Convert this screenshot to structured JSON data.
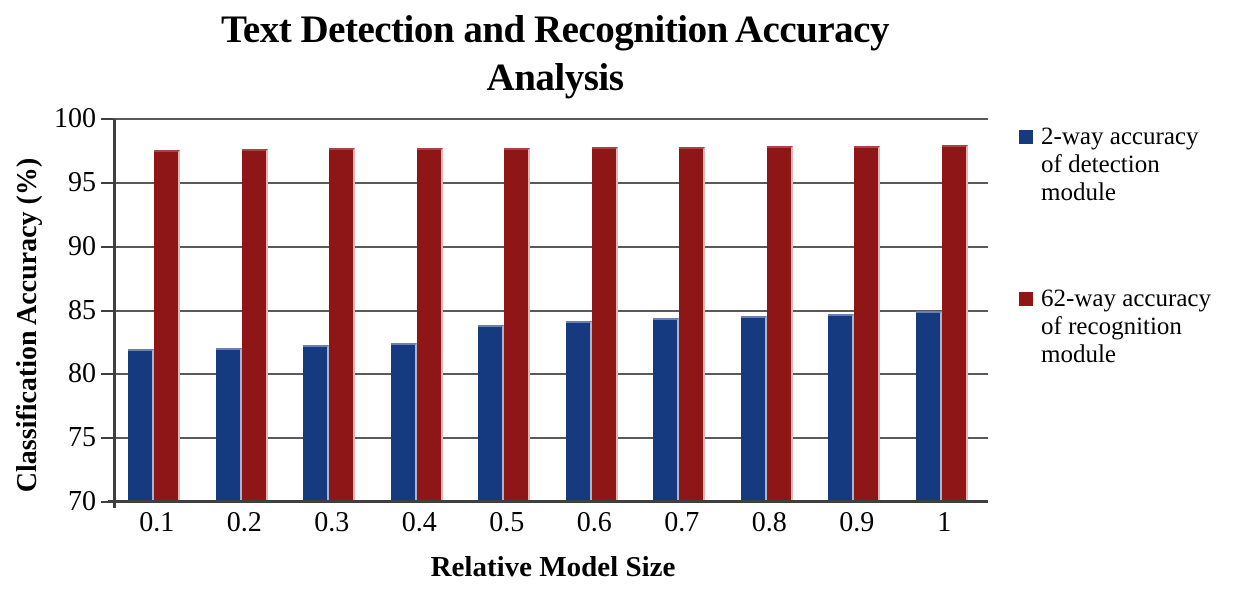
{
  "title": {
    "line1": "Text Detection and Recognition Accuracy",
    "line2": "Analysis"
  },
  "axes": {
    "y_title": "Classification Accuracy (%)",
    "x_title": "Relative Model Size"
  },
  "legend": {
    "items": [
      {
        "lines": [
          "2-way accuracy",
          "of detection",
          "module"
        ]
      },
      {
        "lines": [
          "62-way accuracy",
          "of recognition",
          "module"
        ]
      }
    ]
  },
  "chart_data": {
    "type": "bar",
    "title": "Text Detection and Recognition Accuracy Analysis",
    "categories": [
      "0.1",
      "0.2",
      "0.3",
      "0.4",
      "0.5",
      "0.6",
      "0.7",
      "0.8",
      "0.9",
      "1"
    ],
    "series": [
      {
        "name": "2-way accuracy of detection module",
        "color": "#163A80",
        "values": [
          82.0,
          82.1,
          82.3,
          82.45,
          83.9,
          84.15,
          84.4,
          84.55,
          84.75,
          84.95
        ]
      },
      {
        "name": "62-way accuracy of recognition module",
        "color": "#8E1616",
        "values": [
          97.55,
          97.65,
          97.7,
          97.75,
          97.75,
          97.8,
          97.8,
          97.85,
          97.85,
          98.0
        ]
      }
    ],
    "xlabel": "Relative Model Size",
    "ylabel": "Classification Accuracy (%)",
    "ylim": [
      70,
      100
    ],
    "ytick_step": 5,
    "grid": true,
    "gridline_color": "#595959",
    "legend_position": "right"
  }
}
